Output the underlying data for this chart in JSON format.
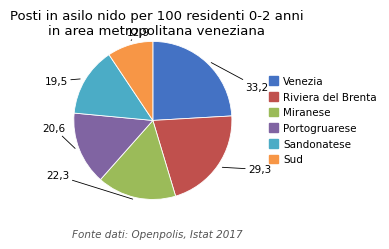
{
  "title": "Posti in asilo nido per 100 residenti 0-2 anni\nin area metropolitana veneziana",
  "subtitle": "Fonte dati: Openpolis, Istat 2017",
  "labels": [
    "Venezia",
    "Riviera del Brenta",
    "Miranese",
    "Portogruarese",
    "Sandonatese",
    "Sud"
  ],
  "values": [
    33.2,
    29.3,
    22.3,
    20.6,
    19.5,
    12.9
  ],
  "colors": [
    "#4472C4",
    "#C0504D",
    "#9BBB59",
    "#8064A2",
    "#4BACC6",
    "#F79646"
  ],
  "autopct_labels": [
    "33,2",
    "29,3",
    "22,3",
    "20,6",
    "19,5",
    "12,9"
  ],
  "title_fontsize": 9.5,
  "legend_fontsize": 7.5,
  "source_fontsize": 7.5,
  "label_fontsize": 7.5
}
